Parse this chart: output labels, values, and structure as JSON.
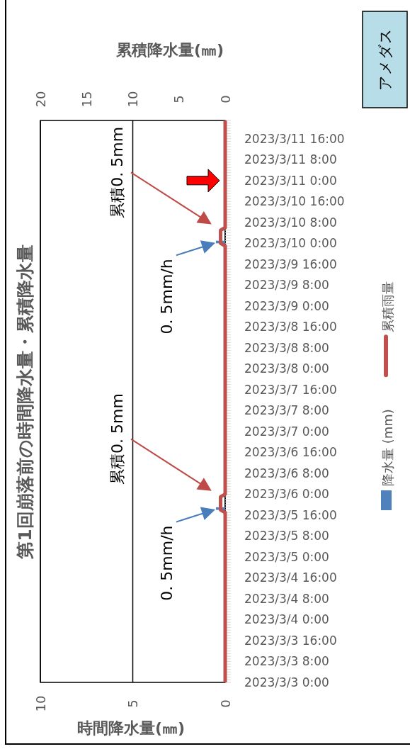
{
  "chart_data": {
    "type": "bar",
    "title": "第1回崩落前の時間降水量・累積降水量",
    "xlabel": "時間降水量(㎜)",
    "x2label": "累積降水量(㎜)",
    "orientation": "horizontal",
    "ylim": [
      "2023-03-03T00:00",
      "2023-03-11T23:00"
    ],
    "yticks": [
      {
        "value": "2023-03-03T00:00",
        "label": "2023/3/3 0:00"
      },
      {
        "value": "2023-03-03T08:00",
        "label": "2023/3/3 8:00"
      },
      {
        "value": "2023-03-03T16:00",
        "label": "2023/3/3 16:00"
      },
      {
        "value": "2023-03-04T00:00",
        "label": "2023/3/4 0:00"
      },
      {
        "value": "2023-03-04T08:00",
        "label": "2023/3/4 8:00"
      },
      {
        "value": "2023-03-04T16:00",
        "label": "2023/3/4 16:00"
      },
      {
        "value": "2023-03-05T00:00",
        "label": "2023/3/5 0:00"
      },
      {
        "value": "2023-03-05T08:00",
        "label": "2023/3/5 8:00"
      },
      {
        "value": "2023-03-05T16:00",
        "label": "2023/3/5 16:00"
      },
      {
        "value": "2023-03-06T00:00",
        "label": "2023/3/6 0:00"
      },
      {
        "value": "2023-03-06T08:00",
        "label": "2023/3/6 8:00"
      },
      {
        "value": "2023-03-06T16:00",
        "label": "2023/3/6 16:00"
      },
      {
        "value": "2023-03-07T00:00",
        "label": "2023/3/7 0:00"
      },
      {
        "value": "2023-03-07T08:00",
        "label": "2023/3/7 8:00"
      },
      {
        "value": "2023-03-07T16:00",
        "label": "2023/3/7 16:00"
      },
      {
        "value": "2023-03-08T00:00",
        "label": "2023/3/8 0:00"
      },
      {
        "value": "2023-03-08T08:00",
        "label": "2023/3/8 8:00"
      },
      {
        "value": "2023-03-08T16:00",
        "label": "2023/3/8 16:00"
      },
      {
        "value": "2023-03-09T00:00",
        "label": "2023/3/9 0:00"
      },
      {
        "value": "2023-03-09T08:00",
        "label": "2023/3/9 8:00"
      },
      {
        "value": "2023-03-09T16:00",
        "label": "2023/3/9 16:00"
      },
      {
        "value": "2023-03-10T00:00",
        "label": "2023/3/10 0:00"
      },
      {
        "value": "2023-03-10T08:00",
        "label": "2023/3/10 8:00"
      },
      {
        "value": "2023-03-10T16:00",
        "label": "2023/3/10 16:00"
      },
      {
        "value": "2023-03-11T00:00",
        "label": "2023/3/11 0:00"
      },
      {
        "value": "2023-03-11T08:00",
        "label": "2023/3/11 8:00"
      },
      {
        "value": "2023-03-11T16:00",
        "label": "2023/3/11 16:00"
      }
    ],
    "xlim": [
      10,
      0
    ],
    "xticks": [
      0,
      5,
      10
    ],
    "x2lim": [
      20,
      0
    ],
    "x2ticks": [
      0,
      5,
      10,
      15,
      20
    ],
    "grid": "x",
    "legend": "right",
    "marker": "none",
    "series": [
      {
        "name": "降水量 (mm)",
        "type": "bar",
        "color": "#4f81bd",
        "x": [
          "2023-03-05T18:00",
          "2023-03-10T00:00"
        ],
        "values": [
          0.5,
          0.5
        ]
      },
      {
        "name": "累積雨量",
        "type": "line",
        "axis": "x2",
        "color": "#c0504d",
        "x": [
          "2023-03-03T00:00",
          "2023-03-05T17:00",
          "2023-03-05T18:00",
          "2023-03-05T23:00",
          "2023-03-06T00:00",
          "2023-03-09T23:00",
          "2023-03-10T00:00",
          "2023-03-10T05:00",
          "2023-03-10T06:00",
          "2023-03-11T23:00"
        ],
        "values": [
          0,
          0,
          0.5,
          0.5,
          0,
          0,
          0.5,
          0.5,
          0,
          0
        ]
      }
    ],
    "annotations": [
      "累積0. 5mm",
      "0. 5mm/h",
      "累積0. 5mm",
      "0. 5mm/h",
      "アメダス"
    ]
  }
}
